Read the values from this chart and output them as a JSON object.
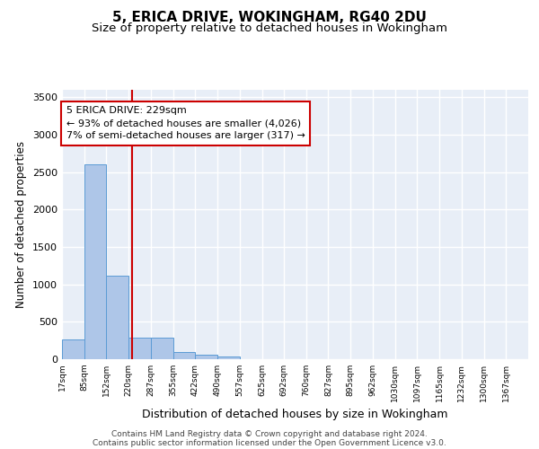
{
  "title": "5, ERICA DRIVE, WOKINGHAM, RG40 2DU",
  "subtitle": "Size of property relative to detached houses in Wokingham",
  "xlabel": "Distribution of detached houses by size in Wokingham",
  "ylabel": "Number of detached properties",
  "bins": [
    "17sqm",
    "85sqm",
    "152sqm",
    "220sqm",
    "287sqm",
    "355sqm",
    "422sqm",
    "490sqm",
    "557sqm",
    "625sqm",
    "692sqm",
    "760sqm",
    "827sqm",
    "895sqm",
    "962sqm",
    "1030sqm",
    "1097sqm",
    "1165sqm",
    "1232sqm",
    "1300sqm",
    "1367sqm"
  ],
  "bin_edges": [
    17,
    85,
    152,
    220,
    287,
    355,
    422,
    490,
    557,
    625,
    692,
    760,
    827,
    895,
    962,
    1030,
    1097,
    1165,
    1232,
    1300,
    1367
  ],
  "values": [
    270,
    2600,
    1120,
    290,
    285,
    95,
    55,
    38,
    0,
    0,
    0,
    0,
    0,
    0,
    0,
    0,
    0,
    0,
    0,
    0
  ],
  "bar_color": "#aec6e8",
  "bar_edge_color": "#5b9bd5",
  "vline_color": "#cc0000",
  "vline_x": 229,
  "annotation_line1": "5 ERICA DRIVE: 229sqm",
  "annotation_line2": "← 93% of detached houses are smaller (4,026)",
  "annotation_line3": "7% of semi-detached houses are larger (317) →",
  "annotation_box_color": "#cc0000",
  "ylim": [
    0,
    3600
  ],
  "yticks": [
    0,
    500,
    1000,
    1500,
    2000,
    2500,
    3000,
    3500
  ],
  "background_color": "#e8eef7",
  "grid_color": "#ffffff",
  "footer_line1": "Contains HM Land Registry data © Crown copyright and database right 2024.",
  "footer_line2": "Contains public sector information licensed under the Open Government Licence v3.0.",
  "title_fontsize": 11,
  "subtitle_fontsize": 9.5,
  "annotation_fontsize": 8,
  "ylabel_fontsize": 8.5,
  "xlabel_fontsize": 9,
  "footer_fontsize": 6.5,
  "tick_fontsize": 6.5,
  "ytick_fontsize": 8
}
